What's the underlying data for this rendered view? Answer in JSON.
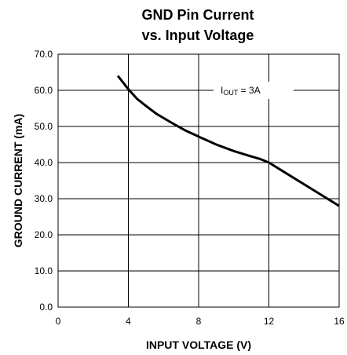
{
  "chart_data": {
    "type": "line",
    "title_line1": "GND Pin Current",
    "title_line2": "vs. Input Voltage",
    "xlabel": "INPUT VOLTAGE (V)",
    "ylabel": "GROUND CURRENT (mA)",
    "xlim": [
      0,
      16
    ],
    "ylim": [
      0.0,
      70.0
    ],
    "x_ticks": [
      "0",
      "4",
      "8",
      "12",
      "16"
    ],
    "y_ticks": [
      "0.0",
      "10.0",
      "20.0",
      "30.0",
      "40.0",
      "50.0",
      "60.0",
      "70.0"
    ],
    "grid": true,
    "annotation": {
      "prefix": "I",
      "subscript": "OUT",
      "suffix": " = 3A"
    },
    "series": [
      {
        "color": "#000000",
        "x": [
          3.4,
          4.0,
          4.5,
          5.0,
          5.6,
          6.4,
          7.2,
          8.0,
          9.0,
          10.0,
          10.8,
          11.5,
          12.0,
          13.0,
          14.0,
          15.0,
          16.0
        ],
        "y": [
          64.0,
          60.3,
          57.6,
          55.7,
          53.5,
          51.2,
          49.0,
          47.2,
          45.0,
          43.2,
          42.0,
          41.0,
          40.0,
          37.0,
          34.0,
          31.0,
          28.0
        ]
      }
    ]
  }
}
